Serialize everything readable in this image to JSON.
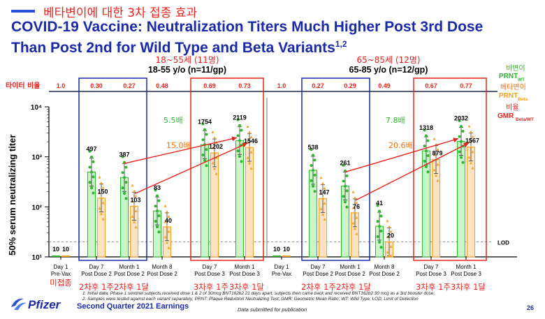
{
  "header": {
    "kr_title": "베타변이에 대한 3차 접종 효과",
    "title_line1": "COVID-19 Vaccine: Neutralization Titers Much Higher Post 3rd Dose",
    "title_line2": "Than Post 2nd for Wild Type and Beta Variants",
    "title_sup": "1,2"
  },
  "chart_data": {
    "type": "bar",
    "scale": "log10",
    "ylabel": "50% serum neutralizing titer",
    "ylim": [
      10,
      10000
    ],
    "y_ticks": [
      "10¹",
      "10²",
      "10³",
      "10⁴"
    ],
    "lod_label": "LOD",
    "ratio_label_kr": "타이터 비율",
    "groups": [
      {
        "kr_label": "18~55세 (11명)",
        "label": "18-55 y/o (n=11/gp)",
        "categories": [
          {
            "line1": "Day 1",
            "line2": "Pre-Vax",
            "wt": 10,
            "beta": 10,
            "ratio": "1.0"
          },
          {
            "line1": "Day 7",
            "line2": "Post Dose 2",
            "wt": 497,
            "beta": 150,
            "ratio": "0.30"
          },
          {
            "line1": "Month 1",
            "line2": "Post Dose 2",
            "wt": 387,
            "beta": 103,
            "ratio": "0.27"
          },
          {
            "line1": "Month 8",
            "line2": "Post Dose 2",
            "wt": 83,
            "beta": 40,
            "ratio": "0.48"
          },
          {
            "line1": "Day 7",
            "line2": "Post Dose 3",
            "wt": 1754,
            "beta": 1202,
            "ratio": "0.69"
          },
          {
            "line1": "Month 1",
            "line2": "Post Dose 3",
            "wt": 2119,
            "beta": 1546,
            "ratio": "0.73"
          }
        ],
        "fold_wt": "5.5배",
        "fold_beta": "15.0배"
      },
      {
        "kr_label": "65~85세 (12명)",
        "label": "65-85 y/o (n=12/gp)",
        "categories": [
          {
            "line1": "Day 1",
            "line2": "Pre-Vax",
            "wt": 10,
            "beta": 10,
            "ratio": "1.0"
          },
          {
            "line1": "Day 7",
            "line2": "Post Dose 2",
            "wt": 538,
            "beta": 147,
            "ratio": "0.27"
          },
          {
            "line1": "Month 1",
            "line2": "Post Dose 2",
            "wt": 261,
            "beta": 76,
            "ratio": "0.29"
          },
          {
            "line1": "Month 8",
            "line2": "Post Dose 2",
            "wt": 41,
            "beta": 20,
            "ratio": "0.49"
          },
          {
            "line1": "Day 7",
            "line2": "Post Dose 3",
            "wt": 1318,
            "beta": 879,
            "ratio": "0.67"
          },
          {
            "line1": "Month 1",
            "line2": "Post Dose 3",
            "wt": 2032,
            "beta": 1567,
            "ratio": "0.77"
          }
        ],
        "fold_wt": "7.8배",
        "fold_beta": "20.6배"
      }
    ],
    "kr_annotations": [
      "미접종",
      "2차후 1주",
      "2차후 1달",
      "3차후 1주",
      "3차후 1달",
      "2차후 1주",
      "2차후 1달",
      "3차후 1주",
      "3차후 1달"
    ],
    "legend": {
      "kr_wt": "비변이",
      "wt_label": "PRNT",
      "wt_sub": "WT",
      "kr_beta": "베타변이",
      "beta_label": "PRNT",
      "beta_sub": "Beta",
      "kr_ratio": "비율",
      "ratio_label": "GMR",
      "ratio_sub": "Beta/WT"
    },
    "colors": {
      "wt": "#2db82d",
      "wt_fill": "#c9f5c9",
      "beta": "#f5a020",
      "beta_fill": "#fde3c0",
      "red": "#e8231d",
      "blue": "#1a2aa8"
    }
  },
  "footnotes": {
    "line1": "1. Initial data, Phase 1 sentinel subjects received dose 1 & 2 of 30mcg BNT162b2 21 days apart, subjects then came back and received BNT162b2 30 mcg as a 3rd booster dose;",
    "line2": "2. Samples were tested against each variant separately; PRNT: Plaque Reduction Neutralizing Test; GMR: Geometric Mean Ratio; WT: Wild Type; LOD: Limit of Detection"
  },
  "footer": {
    "logo_text": "Pfizer",
    "earnings": "Second Quarter 2021 Earnings",
    "submitted": "Data submitted for publication",
    "page": "26"
  }
}
